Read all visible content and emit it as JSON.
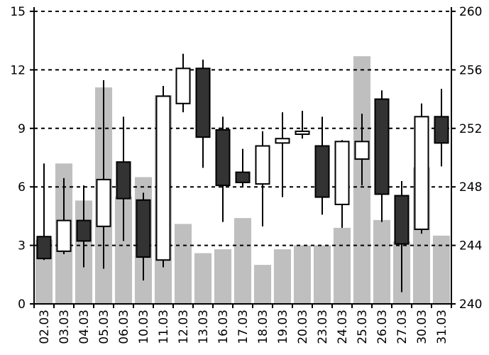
{
  "chart_data": {
    "type": "candlestick",
    "categories": [
      "02.03",
      "03.03",
      "04.03",
      "05.03",
      "06.03",
      "10.03",
      "11.03",
      "12.03",
      "13.03",
      "16.03",
      "17.03",
      "18.03",
      "19.03",
      "20.03",
      "23.03",
      "24.03",
      "25.03",
      "26.03",
      "27.03",
      "30.03",
      "31.03"
    ],
    "left_axis": {
      "min": 0,
      "max": 15,
      "ticks": [
        0,
        3,
        6,
        9,
        12,
        15
      ]
    },
    "right_axis": {
      "min": 240,
      "max": 260,
      "ticks": [
        240,
        244,
        248,
        252,
        256,
        260
      ]
    },
    "grid": "horizontal dashed",
    "volume": {
      "axis": "left",
      "color": "#bfbfbf",
      "values": [
        3.3,
        7.2,
        5.3,
        11.1,
        5.5,
        6.5,
        10.7,
        4.1,
        2.6,
        2.8,
        4.4,
        2.0,
        2.8,
        3.0,
        3.0,
        3.9,
        12.7,
        4.3,
        3.2,
        7.0,
        3.5
      ]
    },
    "candles": {
      "axis": "right",
      "up_color": "#ffffff",
      "down_color": "#333333",
      "ohlc": [
        {
          "open": 244.6,
          "high": 249.6,
          "low": 243.0,
          "close": 243.1
        },
        {
          "open": 243.6,
          "high": 248.6,
          "low": 243.4,
          "close": 245.7
        },
        {
          "open": 245.7,
          "high": 248.1,
          "low": 242.5,
          "close": 244.3
        },
        {
          "open": 245.3,
          "high": 255.3,
          "low": 242.4,
          "close": 248.5
        },
        {
          "open": 249.7,
          "high": 252.8,
          "low": 244.3,
          "close": 247.2
        },
        {
          "open": 247.1,
          "high": 247.6,
          "low": 241.6,
          "close": 243.2
        },
        {
          "open": 243.0,
          "high": 254.9,
          "low": 242.5,
          "close": 254.2
        },
        {
          "open": 253.7,
          "high": 257.1,
          "low": 253.1,
          "close": 256.1
        },
        {
          "open": 256.1,
          "high": 256.7,
          "low": 249.3,
          "close": 251.4
        },
        {
          "open": 251.9,
          "high": 252.8,
          "low": 245.6,
          "close": 248.1
        },
        {
          "open": 249.0,
          "high": 250.6,
          "low": 248.0,
          "close": 248.3
        },
        {
          "open": 248.2,
          "high": 251.8,
          "low": 245.3,
          "close": 250.8
        },
        {
          "open": 251.0,
          "high": 253.1,
          "low": 247.3,
          "close": 251.3
        },
        {
          "open": 251.6,
          "high": 253.2,
          "low": 251.3,
          "close": 251.8
        },
        {
          "open": 250.8,
          "high": 252.8,
          "low": 246.1,
          "close": 247.3
        },
        {
          "open": 246.8,
          "high": 251.2,
          "low": 245.2,
          "close": 251.1
        },
        {
          "open": 249.9,
          "high": 253.0,
          "low": 248.1,
          "close": 251.1
        },
        {
          "open": 254.0,
          "high": 254.6,
          "low": 245.6,
          "close": 247.5
        },
        {
          "open": 247.4,
          "high": 248.4,
          "low": 240.8,
          "close": 244.1
        },
        {
          "open": 245.1,
          "high": 253.7,
          "low": 244.8,
          "close": 252.8
        },
        {
          "open": 252.8,
          "high": 254.7,
          "low": 249.4,
          "close": 251.0
        }
      ]
    }
  }
}
